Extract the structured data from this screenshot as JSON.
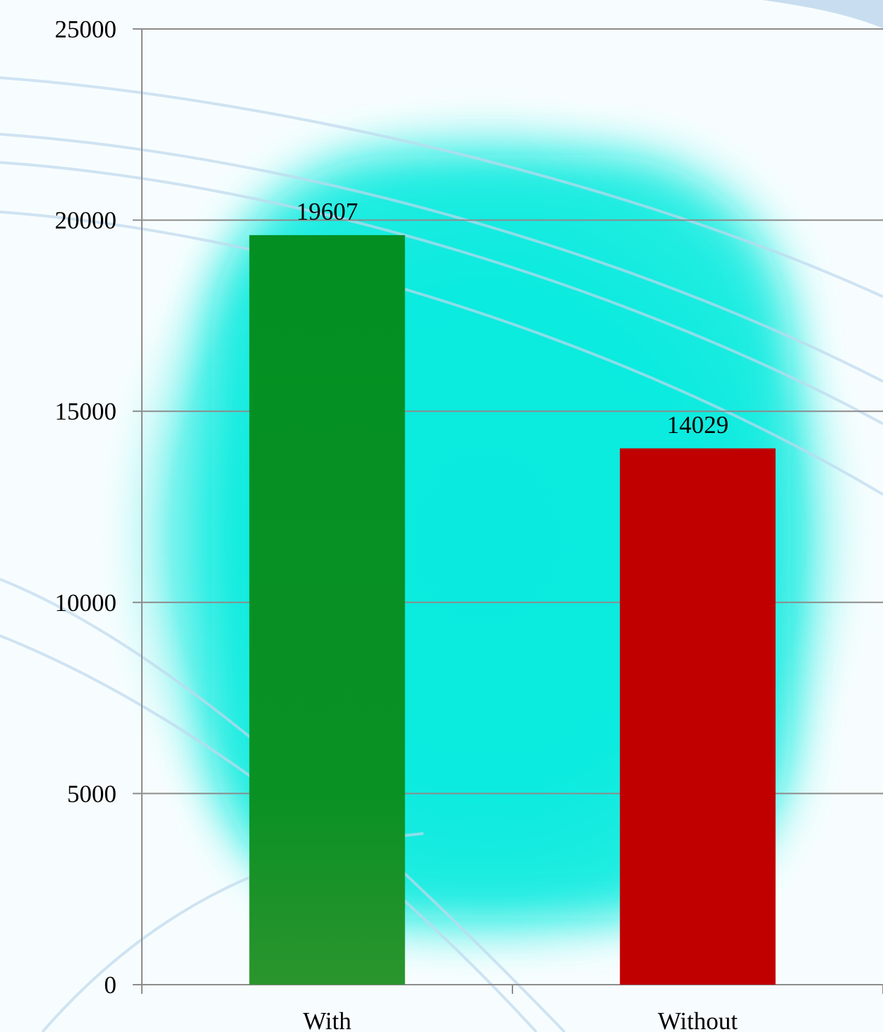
{
  "chart_data": {
    "type": "bar",
    "title": "",
    "xlabel": "",
    "ylabel": "",
    "categories": [
      "With",
      "Without"
    ],
    "values": [
      19607,
      14029
    ],
    "data_labels": [
      "19607",
      "14029"
    ],
    "colors": [
      "#038f22",
      "#c00000"
    ],
    "ylim": [
      0,
      25000
    ],
    "yticks": [
      0,
      5000,
      10000,
      15000,
      20000,
      25000
    ],
    "ytick_labels": [
      "0",
      "5000",
      "10000",
      "15000",
      "20000",
      "25000"
    ],
    "grid": true,
    "legend": "none"
  }
}
